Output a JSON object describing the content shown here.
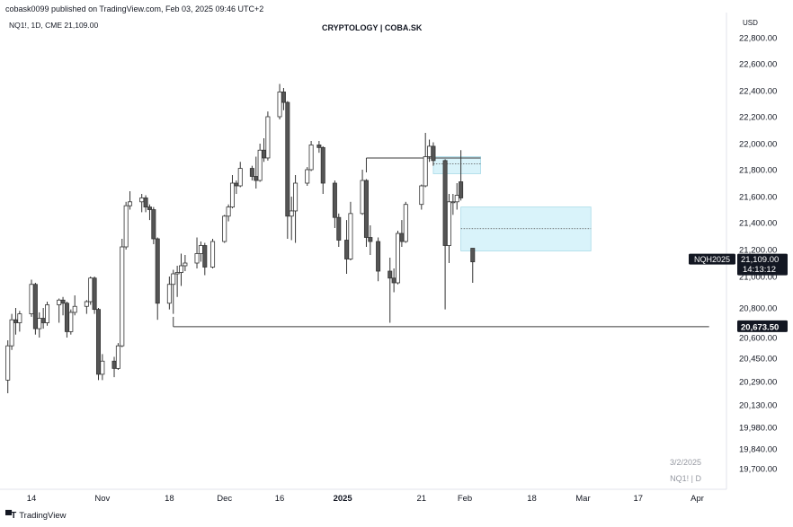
{
  "header": {
    "published": "cobask0099 published on TradingView.com, Feb 03, 2025 09:46 UTC+2",
    "symbol_line": "NQ1!, 1D, CME  21,109.00",
    "title": "CRYPTOLOGY | COBA.SK",
    "currency": "USD"
  },
  "watermark": {
    "date": "3/2/2025",
    "symbol": "NQ1! | D"
  },
  "footer": {
    "brand": "TradingView",
    "logo_icon": "tradingview-logo-icon"
  },
  "price_tags": {
    "current_label": "NQH2025",
    "current_price": "21,109.00",
    "countdown": "14:13:12",
    "level_label": "20,673.50",
    "current_value": 21109.0,
    "level_value": 20673.5
  },
  "colors": {
    "bull_fill": "#ffffff",
    "bear_fill": "#555555",
    "candle_stroke": "#333333",
    "zone_fill": "#d9f3fa",
    "zone_stroke": "#a8dbe8",
    "tag_bg": "#131722",
    "tag_text": "#ffffff"
  },
  "chart_data": {
    "type": "candlestick",
    "title": "CRYPTOLOGY | COBA.SK",
    "y_ticks": [
      "22,800.00",
      "22,600.00",
      "22,400.00",
      "22,200.00",
      "22,000.00",
      "21,800.00",
      "21,600.00",
      "21,400.00",
      "21,200.00",
      "21,000.00",
      "20,800.00",
      "20,600.00",
      "20,450.00",
      "20,290.00",
      "20,130.00",
      "19,980.00",
      "19,840.00",
      "19,700.00"
    ],
    "y_tick_values": [
      22800,
      22600,
      22400,
      22200,
      22000,
      21800,
      21600,
      21400,
      21200,
      21000,
      20800,
      20600,
      20450,
      20290,
      20130,
      19980,
      19840,
      19700
    ],
    "x_ticks": [
      "14",
      "Nov",
      "18",
      "Dec",
      "16",
      "2025",
      "21",
      "Feb",
      "18",
      "Mar",
      "17",
      "Apr"
    ],
    "x_tick_dates": [
      "2024-10-14",
      "2024-11-01",
      "2024-11-18",
      "2024-12-02",
      "2024-12-16",
      "2025-01-01",
      "2025-01-21",
      "2025-02-01",
      "2025-02-18",
      "2025-03-03",
      "2025-03-17",
      "2025-04-01"
    ],
    "candles": [
      {
        "date": "2024-10-08",
        "o": 20300,
        "h": 20580,
        "l": 20210,
        "c": 20540
      },
      {
        "date": "2024-10-09",
        "o": 20540,
        "h": 20760,
        "l": 20510,
        "c": 20720
      },
      {
        "date": "2024-10-10",
        "o": 20720,
        "h": 20800,
        "l": 20620,
        "c": 20700
      },
      {
        "date": "2024-10-11",
        "o": 20700,
        "h": 20780,
        "l": 20640,
        "c": 20760
      },
      {
        "date": "2024-10-14",
        "o": 20760,
        "h": 20980,
        "l": 20740,
        "c": 20950
      },
      {
        "date": "2024-10-15",
        "o": 20950,
        "h": 20960,
        "l": 20620,
        "c": 20660
      },
      {
        "date": "2024-10-16",
        "o": 20660,
        "h": 20770,
        "l": 20600,
        "c": 20730
      },
      {
        "date": "2024-10-17",
        "o": 20730,
        "h": 20800,
        "l": 20660,
        "c": 20700
      },
      {
        "date": "2024-10-18",
        "o": 20700,
        "h": 20840,
        "l": 20680,
        "c": 20820
      },
      {
        "date": "2024-10-21",
        "o": 20820,
        "h": 20860,
        "l": 20700,
        "c": 20850
      },
      {
        "date": "2024-10-22",
        "o": 20850,
        "h": 20870,
        "l": 20750,
        "c": 20830
      },
      {
        "date": "2024-10-23",
        "o": 20830,
        "h": 20840,
        "l": 20600,
        "c": 20640
      },
      {
        "date": "2024-10-24",
        "o": 20640,
        "h": 20790,
        "l": 20620,
        "c": 20770
      },
      {
        "date": "2024-10-25",
        "o": 20770,
        "h": 20880,
        "l": 20750,
        "c": 20810
      },
      {
        "date": "2024-10-28",
        "o": 20810,
        "h": 20850,
        "l": 20760,
        "c": 20840
      },
      {
        "date": "2024-10-29",
        "o": 20840,
        "h": 21000,
        "l": 20820,
        "c": 20990
      },
      {
        "date": "2024-10-30",
        "o": 20990,
        "h": 21000,
        "l": 20760,
        "c": 20790
      },
      {
        "date": "2024-10-31",
        "o": 20790,
        "h": 20800,
        "l": 20300,
        "c": 20340
      },
      {
        "date": "2024-11-01",
        "o": 20340,
        "h": 20480,
        "l": 20300,
        "c": 20430
      },
      {
        "date": "2024-11-04",
        "o": 20430,
        "h": 20460,
        "l": 20320,
        "c": 20380
      },
      {
        "date": "2024-11-05",
        "o": 20380,
        "h": 20560,
        "l": 20370,
        "c": 20540
      },
      {
        "date": "2024-11-06",
        "o": 20540,
        "h": 21280,
        "l": 20530,
        "c": 21220
      },
      {
        "date": "2024-11-07",
        "o": 21220,
        "h": 21560,
        "l": 21200,
        "c": 21530
      },
      {
        "date": "2024-11-08",
        "o": 21530,
        "h": 21640,
        "l": 21500,
        "c": 21560
      },
      {
        "date": "2024-11-11",
        "o": 21560,
        "h": 21620,
        "l": 21480,
        "c": 21590
      },
      {
        "date": "2024-11-12",
        "o": 21590,
        "h": 21610,
        "l": 21480,
        "c": 21520
      },
      {
        "date": "2024-11-13",
        "o": 21520,
        "h": 21540,
        "l": 21420,
        "c": 21500
      },
      {
        "date": "2024-11-14",
        "o": 21500,
        "h": 21520,
        "l": 21240,
        "c": 21280
      },
      {
        "date": "2024-11-15",
        "o": 21280,
        "h": 21290,
        "l": 20720,
        "c": 20830
      },
      {
        "date": "2024-11-18",
        "o": 20830,
        "h": 21000,
        "l": 20790,
        "c": 20950
      },
      {
        "date": "2024-11-19",
        "o": 20950,
        "h": 21050,
        "l": 20760,
        "c": 21020
      },
      {
        "date": "2024-11-20",
        "o": 21020,
        "h": 21080,
        "l": 20870,
        "c": 21030
      },
      {
        "date": "2024-11-21",
        "o": 21030,
        "h": 21170,
        "l": 20940,
        "c": 21080
      },
      {
        "date": "2024-11-22",
        "o": 21080,
        "h": 21160,
        "l": 21040,
        "c": 21100
      },
      {
        "date": "2024-11-25",
        "o": 21100,
        "h": 21290,
        "l": 21060,
        "c": 21170
      },
      {
        "date": "2024-11-26",
        "o": 21170,
        "h": 21260,
        "l": 21110,
        "c": 21230
      },
      {
        "date": "2024-11-27",
        "o": 21230,
        "h": 21250,
        "l": 21010,
        "c": 21070
      },
      {
        "date": "2024-11-29",
        "o": 21070,
        "h": 21280,
        "l": 21060,
        "c": 21260
      },
      {
        "date": "2024-12-02",
        "o": 21260,
        "h": 21460,
        "l": 21250,
        "c": 21450
      },
      {
        "date": "2024-12-03",
        "o": 21450,
        "h": 21540,
        "l": 21410,
        "c": 21520
      },
      {
        "date": "2024-12-04",
        "o": 21520,
        "h": 21760,
        "l": 21510,
        "c": 21700
      },
      {
        "date": "2024-12-05",
        "o": 21700,
        "h": 21720,
        "l": 21620,
        "c": 21680
      },
      {
        "date": "2024-12-06",
        "o": 21680,
        "h": 21860,
        "l": 21670,
        "c": 21810
      },
      {
        "date": "2024-12-09",
        "o": 21810,
        "h": 21830,
        "l": 21720,
        "c": 21750
      },
      {
        "date": "2024-12-10",
        "o": 21750,
        "h": 21900,
        "l": 21660,
        "c": 21720
      },
      {
        "date": "2024-12-11",
        "o": 21720,
        "h": 22000,
        "l": 21710,
        "c": 21950
      },
      {
        "date": "2024-12-12",
        "o": 21950,
        "h": 22040,
        "l": 21860,
        "c": 21890
      },
      {
        "date": "2024-12-13",
        "o": 21890,
        "h": 22240,
        "l": 21870,
        "c": 22200
      },
      {
        "date": "2024-12-16",
        "o": 22200,
        "h": 22450,
        "l": 22180,
        "c": 22390
      },
      {
        "date": "2024-12-17",
        "o": 22390,
        "h": 22420,
        "l": 22250,
        "c": 22310
      },
      {
        "date": "2024-12-18",
        "o": 22310,
        "h": 22320,
        "l": 21280,
        "c": 21450
      },
      {
        "date": "2024-12-19",
        "o": 21450,
        "h": 21600,
        "l": 21270,
        "c": 21490
      },
      {
        "date": "2024-12-20",
        "o": 21490,
        "h": 21760,
        "l": 21250,
        "c": 21700
      },
      {
        "date": "2024-12-23",
        "o": 21700,
        "h": 21820,
        "l": 21680,
        "c": 21800
      },
      {
        "date": "2024-12-24",
        "o": 21800,
        "h": 22020,
        "l": 21790,
        "c": 21990
      },
      {
        "date": "2024-12-26",
        "o": 21990,
        "h": 22020,
        "l": 21930,
        "c": 21970
      },
      {
        "date": "2024-12-27",
        "o": 21970,
        "h": 21980,
        "l": 21620,
        "c": 21700
      },
      {
        "date": "2024-12-30",
        "o": 21700,
        "h": 21720,
        "l": 21360,
        "c": 21440
      },
      {
        "date": "2024-12-31",
        "o": 21440,
        "h": 21470,
        "l": 21220,
        "c": 21270
      },
      {
        "date": "2025-01-02",
        "o": 21270,
        "h": 21420,
        "l": 21020,
        "c": 21130
      },
      {
        "date": "2025-01-03",
        "o": 21130,
        "h": 21560,
        "l": 21120,
        "c": 21470
      },
      {
        "date": "2025-01-06",
        "o": 21470,
        "h": 21800,
        "l": 21460,
        "c": 21720
      },
      {
        "date": "2025-01-07",
        "o": 21720,
        "h": 21730,
        "l": 21220,
        "c": 21290
      },
      {
        "date": "2025-01-08",
        "o": 21290,
        "h": 21380,
        "l": 21160,
        "c": 21260
      },
      {
        "date": "2025-01-10",
        "o": 21260,
        "h": 21290,
        "l": 20970,
        "c": 21040
      },
      {
        "date": "2025-01-13",
        "o": 21040,
        "h": 21140,
        "l": 20700,
        "c": 20990
      },
      {
        "date": "2025-01-14",
        "o": 20990,
        "h": 21060,
        "l": 20900,
        "c": 20960
      },
      {
        "date": "2025-01-15",
        "o": 20960,
        "h": 21340,
        "l": 20950,
        "c": 21320
      },
      {
        "date": "2025-01-16",
        "o": 21320,
        "h": 21420,
        "l": 21220,
        "c": 21260
      },
      {
        "date": "2025-01-17",
        "o": 21260,
        "h": 21560,
        "l": 21250,
        "c": 21540
      },
      {
        "date": "2025-01-21",
        "o": 21540,
        "h": 21690,
        "l": 21500,
        "c": 21680
      },
      {
        "date": "2025-01-22",
        "o": 21680,
        "h": 22080,
        "l": 21670,
        "c": 21900
      },
      {
        "date": "2025-01-23",
        "o": 21900,
        "h": 22030,
        "l": 21860,
        "c": 21980
      },
      {
        "date": "2025-01-24",
        "o": 21980,
        "h": 22010,
        "l": 21830,
        "c": 21870
      },
      {
        "date": "2025-01-27",
        "o": 21870,
        "h": 21880,
        "l": 20790,
        "c": 21230
      },
      {
        "date": "2025-01-28",
        "o": 21230,
        "h": 21620,
        "l": 21100,
        "c": 21560
      },
      {
        "date": "2025-01-29",
        "o": 21560,
        "h": 21620,
        "l": 21460,
        "c": 21560
      },
      {
        "date": "2025-01-30",
        "o": 21560,
        "h": 21700,
        "l": 21500,
        "c": 21610
      },
      {
        "date": "2025-01-31",
        "o": 21710,
        "h": 21950,
        "l": 21570,
        "c": 21590
      },
      {
        "date": "2025-02-03",
        "o": 21210,
        "h": 21210,
        "l": 20960,
        "c": 21109
      }
    ],
    "zones": [
      {
        "from": "2025-01-24",
        "to": "2025-02-05",
        "top": 21900,
        "bottom": 21770,
        "mid": 21845
      },
      {
        "from": "2025-01-31",
        "to": "2025-03-05",
        "top": 21520,
        "bottom": 21190,
        "mid": 21355
      }
    ],
    "lines": [
      {
        "from": "2024-11-19",
        "to": "2025-04-04",
        "value": 20673.5
      },
      {
        "from": "2025-01-07",
        "to": "2025-02-05",
        "value": 21890
      }
    ]
  }
}
